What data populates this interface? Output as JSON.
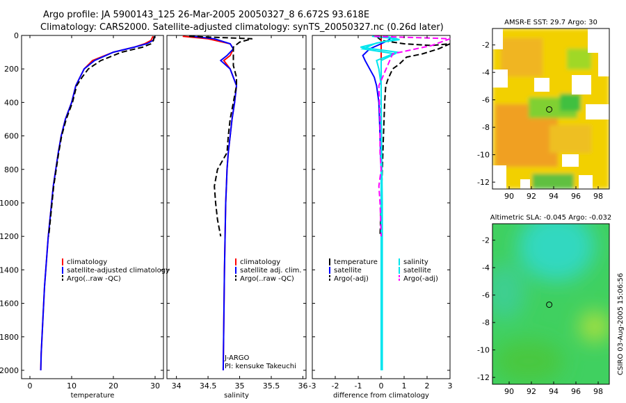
{
  "title": {
    "line1": "Argo profile: JA 5900143_125 26-Mar-2005 20050327_8 6.672S 93.618E",
    "line2": "Climatology: CARS2000. Satellite-adjusted climatology: synTS_20050327.nc (0.26d later)"
  },
  "credit": "CSIRO 03-Aug-2005 15:06:56",
  "colors": {
    "red": "#ff0000",
    "blue": "#0000ff",
    "black": "#000000",
    "cyan": "#00e5ee",
    "magenta": "#ff00ff"
  },
  "chart_data": [
    {
      "id": "temperature",
      "type": "line",
      "xlabel": "temperature",
      "xlim": [
        -2,
        32
      ],
      "ylim": [
        0,
        2050
      ],
      "y_reversed": true,
      "xticks": [
        "0",
        "10",
        "20",
        "30"
      ],
      "xtick_values": [
        0,
        10,
        20,
        30
      ],
      "yticks": [
        "0",
        "200",
        "400",
        "600",
        "800",
        "1000",
        "1200",
        "1400",
        "1600",
        "1800",
        "2000"
      ],
      "ytick_values": [
        0,
        200,
        400,
        600,
        800,
        1000,
        1200,
        1400,
        1600,
        1800,
        2000
      ],
      "legend": [
        "climatology",
        "satellite-adjusted climatology",
        "Argo(..raw -QC)"
      ],
      "series": [
        {
          "name": "climatology",
          "color": "red",
          "dash": false,
          "points": [
            [
              29.5,
              5
            ],
            [
              29.0,
              30
            ],
            [
              27.5,
              50
            ],
            [
              25,
              70
            ],
            [
              20,
              100
            ],
            [
              15,
              150
            ],
            [
              13,
              200
            ],
            [
              12,
              250
            ],
            [
              11,
              300
            ],
            [
              10,
              400
            ],
            [
              8.5,
              500
            ],
            [
              7.5,
              600
            ],
            [
              6.8,
              700
            ],
            [
              6.2,
              800
            ],
            [
              5.6,
              900
            ],
            [
              5.2,
              1000
            ],
            [
              4.8,
              1100
            ],
            [
              4.4,
              1200
            ],
            [
              4.1,
              1300
            ],
            [
              3.8,
              1400
            ],
            [
              3.5,
              1500
            ],
            [
              3.3,
              1600
            ],
            [
              3.1,
              1700
            ],
            [
              2.9,
              1800
            ],
            [
              2.7,
              1900
            ],
            [
              2.6,
              2000
            ]
          ]
        },
        {
          "name": "satellite-adjusted climatology",
          "color": "blue",
          "dash": false,
          "points": [
            [
              30,
              5
            ],
            [
              29.5,
              30
            ],
            [
              28,
              50
            ],
            [
              25,
              70
            ],
            [
              20,
              100
            ],
            [
              15.5,
              150
            ],
            [
              13,
              200
            ],
            [
              12,
              250
            ],
            [
              11,
              300
            ],
            [
              10,
              400
            ],
            [
              8.5,
              500
            ],
            [
              7.5,
              600
            ],
            [
              6.8,
              700
            ],
            [
              6.2,
              800
            ],
            [
              5.6,
              900
            ],
            [
              5.2,
              1000
            ],
            [
              4.8,
              1100
            ],
            [
              4.4,
              1200
            ],
            [
              4.1,
              1300
            ],
            [
              3.8,
              1400
            ],
            [
              3.5,
              1500
            ],
            [
              3.3,
              1600
            ],
            [
              3.1,
              1700
            ],
            [
              2.9,
              1800
            ],
            [
              2.7,
              1900
            ],
            [
              2.6,
              2000
            ]
          ]
        },
        {
          "name": "Argo(..raw -QC)",
          "color": "black",
          "dash": true,
          "points": [
            [
              29.8,
              5
            ],
            [
              29.6,
              30
            ],
            [
              29,
              50
            ],
            [
              27,
              70
            ],
            [
              22,
              100
            ],
            [
              17,
              150
            ],
            [
              14,
              200
            ],
            [
              12.5,
              250
            ],
            [
              11.2,
              300
            ],
            [
              10.2,
              400
            ],
            [
              8.7,
              500
            ],
            [
              7.6,
              600
            ],
            [
              6.9,
              700
            ],
            [
              6.3,
              800
            ],
            [
              5.7,
              900
            ],
            [
              5.3,
              1000
            ],
            [
              4.9,
              1100
            ],
            [
              4.5,
              1200
            ]
          ]
        }
      ]
    },
    {
      "id": "salinity",
      "type": "line",
      "xlabel": "salinity",
      "xlim": [
        33.85,
        36.05
      ],
      "ylim": [
        0,
        2050
      ],
      "y_reversed": true,
      "xticks": [
        "34",
        "34.5",
        "35",
        "35.5",
        "36"
      ],
      "xtick_values": [
        34,
        34.5,
        35,
        35.5,
        36
      ],
      "legend": [
        "climatology",
        "satellite adj. clim.",
        "Argo(..raw -QC)"
      ],
      "notes": [
        "J-ARGO",
        "PI: kensuke Takeuchi"
      ],
      "series": [
        {
          "name": "climatology",
          "color": "red",
          "dash": false,
          "points": [
            [
              34.1,
              5
            ],
            [
              34.5,
              20
            ],
            [
              34.85,
              50
            ],
            [
              34.9,
              80
            ],
            [
              34.85,
              120
            ],
            [
              34.75,
              150
            ],
            [
              34.85,
              200
            ],
            [
              34.95,
              300
            ],
            [
              34.92,
              400
            ],
            [
              34.88,
              500
            ],
            [
              34.85,
              600
            ],
            [
              34.82,
              700
            ],
            [
              34.8,
              800
            ],
            [
              34.79,
              900
            ],
            [
              34.78,
              1000
            ],
            [
              34.77,
              1200
            ],
            [
              34.76,
              1400
            ],
            [
              34.75,
              1700
            ],
            [
              34.74,
              2000
            ]
          ]
        },
        {
          "name": "satellite adj. clim.",
          "color": "blue",
          "dash": false,
          "points": [
            [
              34.25,
              5
            ],
            [
              34.6,
              20
            ],
            [
              34.85,
              50
            ],
            [
              34.9,
              80
            ],
            [
              34.8,
              120
            ],
            [
              34.7,
              150
            ],
            [
              34.85,
              200
            ],
            [
              34.95,
              300
            ],
            [
              34.92,
              400
            ],
            [
              34.88,
              500
            ],
            [
              34.85,
              600
            ],
            [
              34.82,
              700
            ],
            [
              34.8,
              800
            ],
            [
              34.79,
              900
            ],
            [
              34.78,
              1000
            ],
            [
              34.77,
              1200
            ],
            [
              34.76,
              1400
            ],
            [
              34.75,
              1700
            ],
            [
              34.74,
              2000
            ]
          ]
        },
        {
          "name": "Argo(..raw -QC)",
          "color": "black",
          "dash": true,
          "points": [
            [
              34.2,
              5
            ],
            [
              35.2,
              20
            ],
            [
              35.0,
              40
            ],
            [
              34.9,
              70
            ],
            [
              34.9,
              120
            ],
            [
              34.9,
              180
            ],
            [
              34.95,
              250
            ],
            [
              34.95,
              300
            ],
            [
              34.9,
              400
            ],
            [
              34.85,
              500
            ],
            [
              34.82,
              600
            ],
            [
              34.8,
              700
            ],
            [
              34.65,
              800
            ],
            [
              34.6,
              900
            ],
            [
              34.62,
              1000
            ],
            [
              34.65,
              1100
            ],
            [
              34.7,
              1200
            ]
          ]
        }
      ]
    },
    {
      "id": "difference",
      "type": "line",
      "xlabel": "difference from climatology",
      "xlim": [
        -3,
        3
      ],
      "ylim": [
        0,
        2050
      ],
      "y_reversed": true,
      "xticks": [
        "-3",
        "-2",
        "-1",
        "0",
        "1",
        "2",
        "3"
      ],
      "xtick_values": [
        -3,
        -2,
        -1,
        0,
        1,
        2,
        3
      ],
      "legend_left": [
        "temperature",
        "satellite",
        "Argo(-adj)"
      ],
      "legend_right": [
        "salinity",
        "satellite",
        "Argo(-adj)"
      ],
      "series": [
        {
          "name": "temperature",
          "color": "red",
          "dash": false,
          "points": [
            [
              0,
              0
            ],
            [
              0,
              2000
            ]
          ]
        },
        {
          "name": "temperature satellite",
          "color": "blue",
          "dash": false,
          "points": [
            [
              0.5,
              5
            ],
            [
              0.3,
              30
            ],
            [
              0,
              50
            ],
            [
              -0.5,
              80
            ],
            [
              -0.8,
              120
            ],
            [
              -0.7,
              150
            ],
            [
              -0.5,
              200
            ],
            [
              -0.3,
              250
            ],
            [
              -0.2,
              300
            ],
            [
              -0.1,
              400
            ],
            [
              -0.05,
              600
            ],
            [
              0,
              800
            ],
            [
              0,
              1200
            ],
            [
              0,
              2000
            ]
          ]
        },
        {
          "name": "temperature Argo(-adj)",
          "color": "black",
          "dash": true,
          "points": [
            [
              -0.2,
              5
            ],
            [
              0,
              30
            ],
            [
              1,
              50
            ],
            [
              2.2,
              60
            ],
            [
              3,
              50
            ],
            [
              2.5,
              80
            ],
            [
              1.8,
              110
            ],
            [
              1.1,
              130
            ],
            [
              0.8,
              170
            ],
            [
              0.5,
              200
            ],
            [
              0.3,
              260
            ],
            [
              0.2,
              300
            ],
            [
              0.15,
              400
            ],
            [
              0.1,
              600
            ],
            [
              0.05,
              800
            ],
            [
              0,
              1000
            ],
            [
              -0.05,
              1200
            ]
          ]
        },
        {
          "name": "salinity",
          "color": "cyan",
          "dash": false,
          "points": [
            [
              -0.4,
              5
            ],
            [
              0.7,
              20
            ],
            [
              0,
              40
            ],
            [
              -0.9,
              70
            ],
            [
              0.7,
              100
            ],
            [
              -0.2,
              150
            ],
            [
              -0.1,
              200
            ],
            [
              0,
              300
            ],
            [
              0,
              500
            ],
            [
              0,
              1000
            ],
            [
              0,
              2000
            ]
          ]
        },
        {
          "name": "salinity satellite",
          "color": "cyan",
          "dash": false,
          "points": [
            [
              0.2,
              5
            ],
            [
              0.8,
              25
            ],
            [
              -0.2,
              45
            ],
            [
              -0.8,
              80
            ],
            [
              0.6,
              110
            ],
            [
              0,
              150
            ],
            [
              0,
              200
            ],
            [
              0,
              400
            ],
            [
              0.05,
              1000
            ],
            [
              0.05,
              2000
            ]
          ]
        },
        {
          "name": "salinity Argo(-adj)",
          "color": "magenta",
          "dash": true,
          "points": [
            [
              -0.3,
              5
            ],
            [
              2,
              15
            ],
            [
              3,
              20
            ],
            [
              2.2,
              60
            ],
            [
              0.5,
              110
            ],
            [
              -0.1,
              300
            ],
            [
              -0.05,
              500
            ],
            [
              -0.05,
              700
            ],
            [
              0,
              800
            ],
            [
              -0.1,
              900
            ],
            [
              -0.05,
              1000
            ],
            [
              0,
              1200
            ]
          ]
        }
      ]
    },
    {
      "id": "sst_map",
      "type": "heatmap",
      "title": "AMSR-E SST: 29.7 Argo: 30",
      "xlim": [
        88.5,
        99
      ],
      "ylim": [
        -12.5,
        -0.8
      ],
      "xticks": [
        "90",
        "92",
        "94",
        "96",
        "98"
      ],
      "xtick_values": [
        90,
        92,
        94,
        96,
        98
      ],
      "yticks": [
        "-2",
        "-4",
        "-6",
        "-8",
        "-10",
        "-12"
      ],
      "ytick_values": [
        -2,
        -4,
        -6,
        -8,
        -10,
        -12
      ],
      "float_position": [
        93.6,
        -6.7
      ]
    },
    {
      "id": "sla_map",
      "type": "heatmap",
      "title": "Altimetric SLA: -0.045 Argo: -0.032",
      "xlim": [
        88.5,
        99
      ],
      "ylim": [
        -12.5,
        -0.8
      ],
      "xticks": [
        "90",
        "92",
        "94",
        "96",
        "98"
      ],
      "xtick_values": [
        90,
        92,
        94,
        96,
        98
      ],
      "yticks": [
        "-2",
        "-4",
        "-6",
        "-8",
        "-10",
        "-12"
      ],
      "ytick_values": [
        -2,
        -4,
        -6,
        -8,
        -10,
        -12
      ],
      "float_position": [
        93.6,
        -6.7
      ]
    }
  ]
}
